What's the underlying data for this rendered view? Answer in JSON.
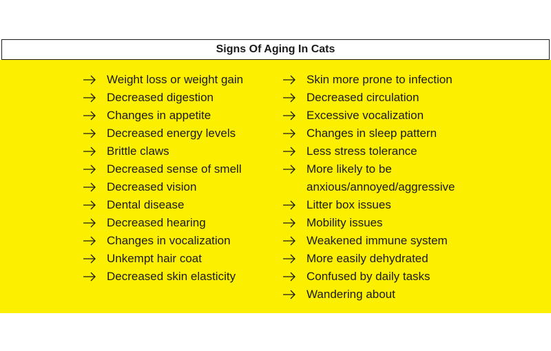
{
  "header": {
    "title": "Signs Of Aging In Cats"
  },
  "left_list": [
    "Weight loss or weight gain",
    "Decreased digestion",
    "Changes in appetite",
    "Decreased energy levels",
    "Brittle claws",
    "Decreased sense of smell",
    "Decreased vision",
    "Dental disease",
    "Decreased hearing",
    "Changes in vocalization",
    "Unkempt hair coat",
    "Decreased skin elasticity"
  ],
  "right_list": [
    "Skin more prone to infection",
    "Decreased circulation",
    "Excessive vocalization",
    "Changes in sleep pattern",
    "Less stress tolerance",
    "More likely to be anxious/annoyed/aggressive",
    "Litter box issues",
    "Mobility issues",
    "Weakened immune system",
    "More easily dehydrated",
    "Confused by daily tasks",
    "Wandering about"
  ]
}
